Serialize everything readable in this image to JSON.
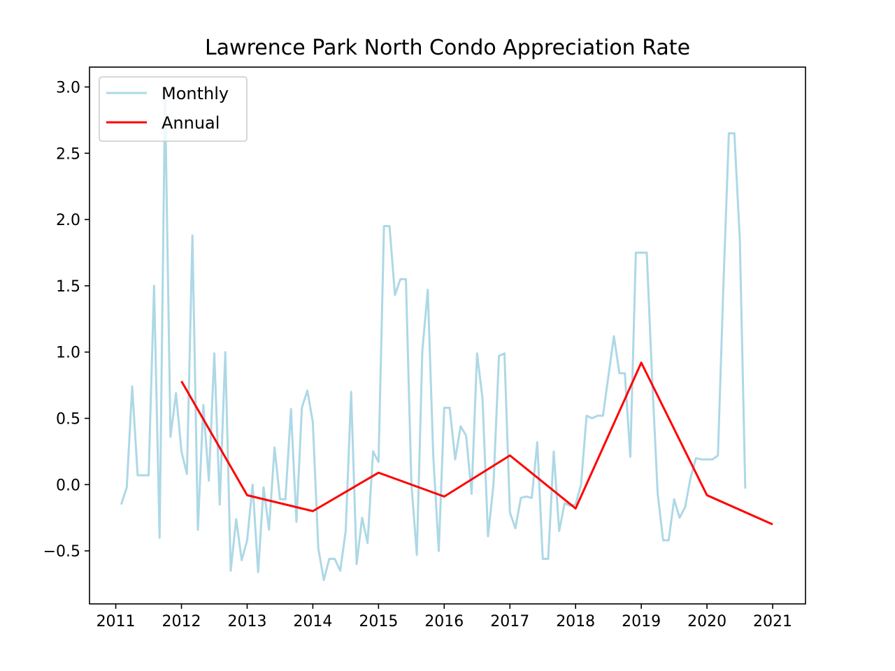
{
  "chart_data": {
    "type": "line",
    "title": "Lawrence Park North Condo Appreciation Rate",
    "xlabel": "",
    "ylabel": "",
    "xlim": [
      2010.6,
      2021.5
    ],
    "ylim": [
      -0.9,
      3.15
    ],
    "xticks": [
      2011,
      2012,
      2013,
      2014,
      2015,
      2016,
      2017,
      2018,
      2019,
      2020,
      2021
    ],
    "yticks": [
      -0.5,
      0.0,
      0.5,
      1.0,
      1.5,
      2.0,
      2.5,
      3.0
    ],
    "ytick_labels": [
      "−0.5",
      "0.0",
      "0.5",
      "1.0",
      "1.5",
      "2.0",
      "2.5",
      "3.0"
    ],
    "grid": false,
    "legend_position": "upper-left",
    "series": [
      {
        "name": "Monthly",
        "color": "#add8e6",
        "x": [
          2011.083,
          2011.167,
          2011.25,
          2011.333,
          2011.417,
          2011.5,
          2011.583,
          2011.667,
          2011.75,
          2011.833,
          2011.917,
          2012.0,
          2012.083,
          2012.167,
          2012.25,
          2012.333,
          2012.417,
          2012.5,
          2012.583,
          2012.667,
          2012.75,
          2012.833,
          2012.917,
          2013.0,
          2013.083,
          2013.167,
          2013.25,
          2013.333,
          2013.417,
          2013.5,
          2013.583,
          2013.667,
          2013.75,
          2013.833,
          2013.917,
          2014.0,
          2014.083,
          2014.167,
          2014.25,
          2014.333,
          2014.417,
          2014.5,
          2014.583,
          2014.667,
          2014.75,
          2014.833,
          2014.917,
          2015.0,
          2015.083,
          2015.167,
          2015.25,
          2015.333,
          2015.417,
          2015.5,
          2015.583,
          2015.667,
          2015.75,
          2015.833,
          2015.917,
          2016.0,
          2016.083,
          2016.167,
          2016.25,
          2016.333,
          2016.417,
          2016.5,
          2016.583,
          2016.667,
          2016.75,
          2016.833,
          2016.917,
          2017.0,
          2017.083,
          2017.167,
          2017.25,
          2017.333,
          2017.417,
          2017.5,
          2017.583,
          2017.667,
          2017.75,
          2017.833,
          2017.917,
          2018.0,
          2018.083,
          2018.167,
          2018.25,
          2018.333,
          2018.417,
          2018.5,
          2018.583,
          2018.667,
          2018.75,
          2018.833,
          2018.917,
          2019.0,
          2019.083,
          2019.167,
          2019.25,
          2019.333,
          2019.417,
          2019.5,
          2019.583,
          2019.667,
          2019.75,
          2019.833,
          2019.917,
          2020.0,
          2020.083,
          2020.167,
          2020.25,
          2020.333,
          2020.417,
          2020.5,
          2020.583
        ],
        "values": [
          -0.15,
          -0.02,
          0.74,
          0.07,
          0.07,
          0.07,
          1.5,
          -0.4,
          2.95,
          0.36,
          0.69,
          0.25,
          0.08,
          1.88,
          -0.34,
          0.6,
          0.03,
          0.99,
          -0.15,
          1.0,
          -0.65,
          -0.26,
          -0.57,
          -0.42,
          0.0,
          -0.66,
          -0.02,
          -0.34,
          0.28,
          -0.11,
          -0.11,
          0.57,
          -0.28,
          0.58,
          0.71,
          0.47,
          -0.48,
          -0.72,
          -0.56,
          -0.56,
          -0.65,
          -0.35,
          0.7,
          -0.6,
          -0.25,
          -0.44,
          0.25,
          0.17,
          1.95,
          1.95,
          1.43,
          1.55,
          1.55,
          0.01,
          -0.53,
          1.01,
          1.47,
          0.22,
          -0.5,
          0.58,
          0.58,
          0.19,
          0.44,
          0.37,
          -0.07,
          0.99,
          0.65,
          -0.39,
          0.0,
          0.97,
          0.99,
          -0.21,
          -0.33,
          -0.1,
          -0.09,
          -0.1,
          0.32,
          -0.56,
          -0.56,
          0.25,
          -0.35,
          -0.14,
          -0.16,
          -0.15,
          0.0,
          0.52,
          0.5,
          0.52,
          0.52,
          0.82,
          1.12,
          0.84,
          0.84,
          0.21,
          1.75,
          1.75,
          1.75,
          0.78,
          -0.07,
          -0.42,
          -0.42,
          -0.11,
          -0.25,
          -0.17,
          0.05,
          0.2,
          0.19,
          0.19,
          0.19,
          0.22,
          1.5,
          2.65,
          2.65,
          1.85,
          -0.03
        ]
      },
      {
        "name": "Annual",
        "color": "#ff0000",
        "x": [
          2012,
          2013,
          2014,
          2015,
          2016,
          2017,
          2018,
          2019,
          2020,
          2021
        ],
        "values": [
          0.78,
          -0.08,
          -0.2,
          0.09,
          -0.09,
          0.22,
          -0.18,
          0.92,
          -0.08,
          -0.3
        ]
      }
    ]
  }
}
